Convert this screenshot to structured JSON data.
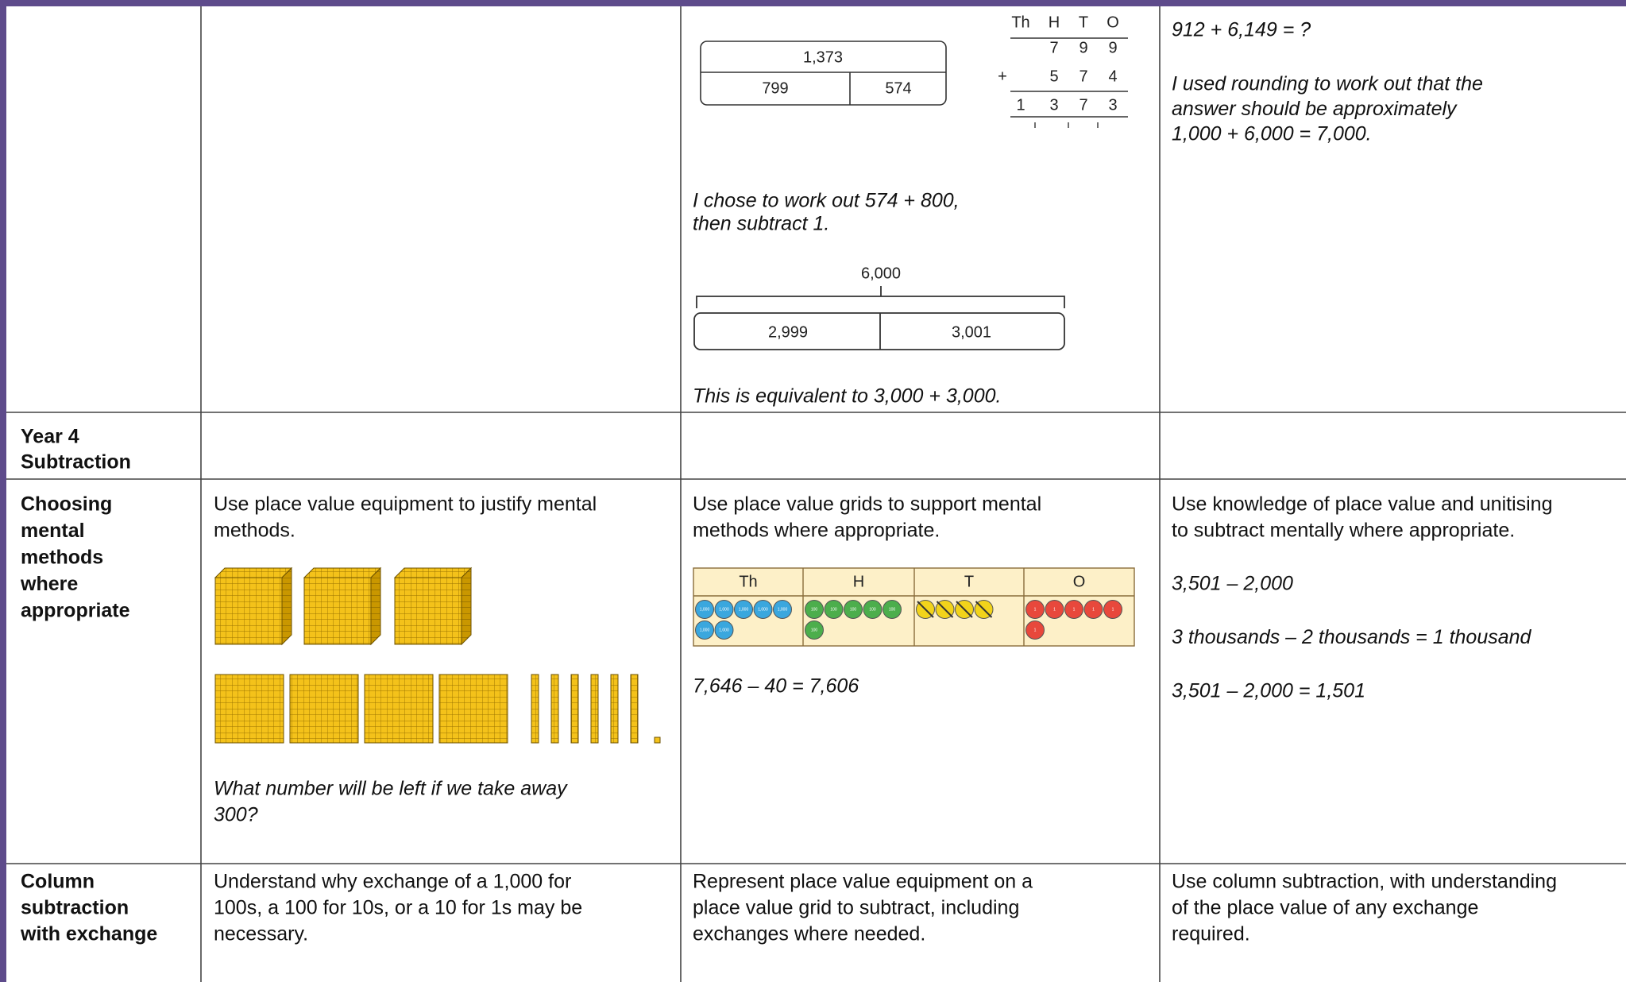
{
  "table": {
    "rows": [
      {
        "col3": {
          "bar_model_1": {
            "whole": "1,373",
            "parts": [
              "799",
              "574"
            ]
          },
          "column_addition": {
            "headers": [
              "Th",
              "H",
              "T",
              "O"
            ],
            "first": [
              "7",
              "9",
              "9"
            ],
            "operator": "+",
            "second": [
              "5",
              "7",
              "4"
            ],
            "answer": [
              "1",
              "3",
              "7",
              "3"
            ]
          },
          "note": [
            "I chose to work out 574 + 800,",
            "then subtract 1."
          ],
          "bar_model_2": {
            "whole": "6,000",
            "parts": [
              "2,999",
              "3,001"
            ]
          },
          "conclusion": "This is equivalent to 3,000 + 3,000."
        },
        "col4": {
          "question": "912 + 6,149 = ?",
          "explanation": [
            "I used rounding to work out that the",
            "answer should be approximately",
            "1,000 + 6,000 = 7,000."
          ]
        }
      },
      {
        "col1": [
          "Year 4",
          "Subtraction"
        ]
      },
      {
        "col1": [
          "Choosing",
          "mental",
          "methods",
          "where",
          "appropriate"
        ],
        "col2": {
          "text": [
            "Use place value equipment to justify mental",
            "methods."
          ],
          "question": [
            "What number will be left if we take away",
            "300?"
          ]
        },
        "col3": {
          "text": [
            "Use place value grids to support mental",
            "methods where appropriate."
          ],
          "grid": {
            "headers": [
              "Th",
              "H",
              "T",
              "O"
            ],
            "counter_labels": [
              "1,000",
              "100",
              "10",
              "1"
            ]
          },
          "equation": "7,646 – 40 = 7,606"
        },
        "col4": {
          "text": [
            "Use knowledge of place value and unitising",
            "to subtract mentally where appropriate."
          ],
          "examples": [
            "3,501 – 2,000",
            "3 thousands – 2 thousands = 1 thousand",
            "3,501 – 2,000 = 1,501"
          ]
        }
      },
      {
        "col1": [
          "Column",
          "subtraction",
          "with exchange"
        ],
        "col2": [
          "Understand why exchange of a 1,000 for",
          "100s, a 100 for 10s, or a 10 for 1s may be",
          "necessary."
        ],
        "col3": [
          "Represent place value equipment on a",
          "place value grid to subtract, including",
          "exchanges where needed."
        ],
        "col4": [
          "Use column subtraction, with understanding",
          "of the place value of any exchange",
          "required."
        ]
      }
    ]
  }
}
